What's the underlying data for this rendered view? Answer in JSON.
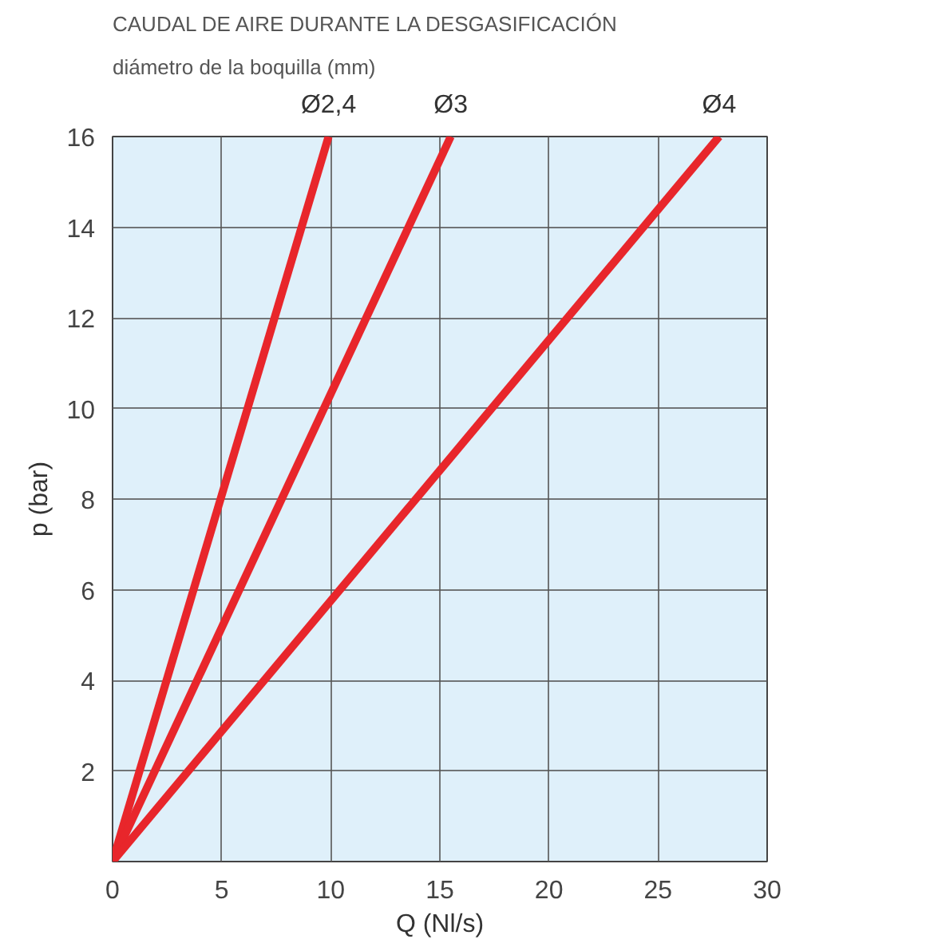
{
  "chart_data": {
    "type": "line",
    "title": "CAUDAL DE AIRE DURANTE LA DESGASIFICACIÓN",
    "subtitle": "diámetro de la boquilla (mm)",
    "xlabel": "Q (Nl/s)",
    "ylabel": "p (bar)",
    "xlim": [
      0,
      30
    ],
    "ylim": [
      0,
      16
    ],
    "xticks": [
      0,
      5,
      10,
      15,
      20,
      25,
      30
    ],
    "yticks": [
      2,
      4,
      6,
      8,
      10,
      12,
      14,
      16
    ],
    "grid": true,
    "series": [
      {
        "name": "Ø2,4",
        "color": "#e8262b",
        "x": [
          0,
          9.9
        ],
        "values": [
          0,
          16
        ]
      },
      {
        "name": "Ø3",
        "color": "#e8262b",
        "x": [
          0,
          15.5
        ],
        "values": [
          0,
          16
        ]
      },
      {
        "name": "Ø4",
        "color": "#e8262b",
        "x": [
          0,
          27.8
        ],
        "values": [
          0,
          16
        ]
      }
    ]
  }
}
